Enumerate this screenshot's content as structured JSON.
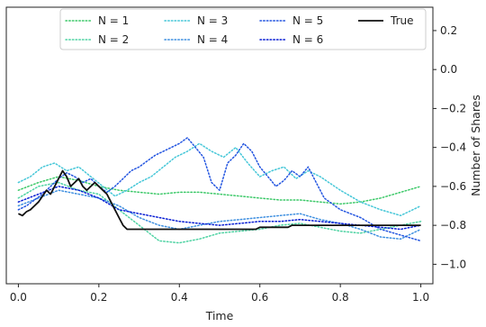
{
  "chart_data": {
    "type": "line",
    "title": "",
    "xlabel": "Time",
    "ylabel": "Number of Shares",
    "xlim": [
      -0.03,
      1.03
    ],
    "ylim": [
      -1.1,
      0.32
    ],
    "y_axis_side": "right",
    "grid": false,
    "legend": {
      "placement": "top",
      "columns": 4
    },
    "x_ticks": [
      {
        "value": 0.0,
        "label": "0.0"
      },
      {
        "value": 0.2,
        "label": "0.2"
      },
      {
        "value": 0.4,
        "label": "0.4"
      },
      {
        "value": 0.6,
        "label": "0.6"
      },
      {
        "value": 0.8,
        "label": "0.8"
      },
      {
        "value": 1.0,
        "label": "1.0"
      }
    ],
    "y_ticks": [
      {
        "value": 0.2,
        "label": "0.2"
      },
      {
        "value": 0.0,
        "label": "0.0"
      },
      {
        "value": -0.2,
        "label": "−0.2"
      },
      {
        "value": -0.4,
        "label": "−0.4"
      },
      {
        "value": -0.6,
        "label": "−0.6"
      },
      {
        "value": -0.8,
        "label": "−0.8"
      },
      {
        "value": -1.0,
        "label": "−1.0"
      }
    ],
    "series": [
      {
        "name": "N = 1",
        "style": "dotted",
        "color": "#3ec96a",
        "x": [
          0.0,
          0.05,
          0.1,
          0.15,
          0.2,
          0.25,
          0.3,
          0.35,
          0.4,
          0.45,
          0.5,
          0.55,
          0.6,
          0.65,
          0.7,
          0.75,
          0.8,
          0.85,
          0.9,
          0.95,
          1.0
        ],
        "values": [
          -0.62,
          -0.58,
          -0.55,
          -0.57,
          -0.6,
          -0.62,
          -0.63,
          -0.64,
          -0.63,
          -0.63,
          -0.64,
          -0.65,
          -0.66,
          -0.67,
          -0.67,
          -0.68,
          -0.69,
          -0.68,
          -0.66,
          -0.63,
          -0.6
        ]
      },
      {
        "name": "N = 2",
        "style": "dotted",
        "color": "#4fd3a3",
        "x": [
          0.0,
          0.05,
          0.1,
          0.15,
          0.2,
          0.25,
          0.3,
          0.35,
          0.4,
          0.45,
          0.5,
          0.55,
          0.6,
          0.65,
          0.7,
          0.75,
          0.8,
          0.85,
          0.9,
          0.95,
          1.0
        ],
        "values": [
          -0.66,
          -0.6,
          -0.58,
          -0.62,
          -0.64,
          -0.72,
          -0.8,
          -0.88,
          -0.89,
          -0.87,
          -0.84,
          -0.83,
          -0.82,
          -0.8,
          -0.79,
          -0.81,
          -0.83,
          -0.84,
          -0.82,
          -0.8,
          -0.78
        ]
      },
      {
        "name": "N = 3",
        "style": "dotted",
        "color": "#46c7d8",
        "x": [
          0.0,
          0.03,
          0.06,
          0.09,
          0.12,
          0.15,
          0.18,
          0.21,
          0.24,
          0.27,
          0.3,
          0.33,
          0.36,
          0.39,
          0.42,
          0.45,
          0.48,
          0.51,
          0.54,
          0.57,
          0.6,
          0.63,
          0.66,
          0.69,
          0.72,
          0.75,
          0.8,
          0.85,
          0.9,
          0.95,
          1.0
        ],
        "values": [
          -0.58,
          -0.55,
          -0.5,
          -0.48,
          -0.52,
          -0.5,
          -0.55,
          -0.6,
          -0.65,
          -0.62,
          -0.58,
          -0.55,
          -0.5,
          -0.45,
          -0.42,
          -0.38,
          -0.42,
          -0.45,
          -0.4,
          -0.48,
          -0.55,
          -0.52,
          -0.5,
          -0.56,
          -0.52,
          -0.55,
          -0.62,
          -0.68,
          -0.72,
          -0.75,
          -0.7
        ]
      },
      {
        "name": "N = 4",
        "style": "dotted",
        "color": "#3e8fe0",
        "x": [
          0.0,
          0.05,
          0.1,
          0.15,
          0.2,
          0.25,
          0.3,
          0.35,
          0.4,
          0.45,
          0.5,
          0.55,
          0.6,
          0.65,
          0.7,
          0.75,
          0.8,
          0.85,
          0.9,
          0.95,
          1.0
        ],
        "values": [
          -0.7,
          -0.66,
          -0.62,
          -0.64,
          -0.66,
          -0.7,
          -0.76,
          -0.8,
          -0.82,
          -0.8,
          -0.78,
          -0.77,
          -0.76,
          -0.75,
          -0.74,
          -0.77,
          -0.79,
          -0.82,
          -0.86,
          -0.87,
          -0.82
        ]
      },
      {
        "name": "N = 5",
        "style": "dotted",
        "color": "#2355e0",
        "x": [
          0.0,
          0.02,
          0.04,
          0.06,
          0.08,
          0.1,
          0.12,
          0.14,
          0.16,
          0.18,
          0.2,
          0.22,
          0.24,
          0.26,
          0.28,
          0.3,
          0.32,
          0.34,
          0.36,
          0.38,
          0.4,
          0.42,
          0.44,
          0.46,
          0.48,
          0.5,
          0.52,
          0.54,
          0.56,
          0.58,
          0.6,
          0.62,
          0.64,
          0.66,
          0.68,
          0.7,
          0.72,
          0.74,
          0.76,
          0.8,
          0.85,
          0.9,
          0.95,
          1.0
        ],
        "values": [
          -0.72,
          -0.7,
          -0.67,
          -0.64,
          -0.6,
          -0.56,
          -0.53,
          -0.55,
          -0.58,
          -0.56,
          -0.6,
          -0.63,
          -0.6,
          -0.56,
          -0.52,
          -0.5,
          -0.47,
          -0.44,
          -0.42,
          -0.4,
          -0.38,
          -0.35,
          -0.4,
          -0.45,
          -0.58,
          -0.62,
          -0.48,
          -0.44,
          -0.38,
          -0.42,
          -0.5,
          -0.55,
          -0.6,
          -0.57,
          -0.52,
          -0.55,
          -0.5,
          -0.58,
          -0.66,
          -0.72,
          -0.76,
          -0.82,
          -0.85,
          -0.88
        ]
      },
      {
        "name": "N = 6",
        "style": "dotted",
        "color": "#0a1fd4",
        "x": [
          0.0,
          0.05,
          0.1,
          0.15,
          0.2,
          0.25,
          0.3,
          0.35,
          0.4,
          0.45,
          0.5,
          0.55,
          0.6,
          0.65,
          0.7,
          0.75,
          0.8,
          0.85,
          0.9,
          0.95,
          1.0
        ],
        "values": [
          -0.68,
          -0.64,
          -0.6,
          -0.62,
          -0.66,
          -0.72,
          -0.74,
          -0.76,
          -0.78,
          -0.79,
          -0.8,
          -0.79,
          -0.78,
          -0.78,
          -0.77,
          -0.78,
          -0.79,
          -0.8,
          -0.81,
          -0.82,
          -0.8
        ]
      },
      {
        "name": "True",
        "style": "solid",
        "color": "#111111",
        "x": [
          0.0,
          0.01,
          0.02,
          0.03,
          0.04,
          0.05,
          0.06,
          0.07,
          0.08,
          0.09,
          0.1,
          0.11,
          0.12,
          0.13,
          0.14,
          0.15,
          0.16,
          0.17,
          0.18,
          0.19,
          0.2,
          0.21,
          0.22,
          0.23,
          0.24,
          0.25,
          0.26,
          0.27,
          0.28,
          0.29,
          0.3,
          0.31,
          0.32,
          0.33,
          0.34,
          0.35,
          0.36,
          0.37,
          0.38,
          0.39,
          0.4,
          0.41,
          0.42,
          0.43,
          0.44,
          0.45,
          0.46,
          0.47,
          0.48,
          0.49,
          0.5,
          0.51,
          0.52,
          0.53,
          0.54,
          0.55,
          0.56,
          0.57,
          0.58,
          0.59,
          0.6,
          0.61,
          0.62,
          0.63,
          0.64,
          0.65,
          0.66,
          0.67,
          0.68,
          0.69,
          0.7,
          0.71,
          0.72,
          0.73,
          0.74,
          0.75,
          0.76,
          0.78,
          0.8,
          0.85,
          0.9,
          0.95,
          1.0
        ],
        "values": [
          -0.74,
          -0.75,
          -0.73,
          -0.72,
          -0.7,
          -0.68,
          -0.65,
          -0.62,
          -0.64,
          -0.6,
          -0.56,
          -0.52,
          -0.55,
          -0.6,
          -0.58,
          -0.56,
          -0.6,
          -0.62,
          -0.6,
          -0.58,
          -0.6,
          -0.62,
          -0.64,
          -0.68,
          -0.72,
          -0.76,
          -0.8,
          -0.82,
          -0.82,
          -0.82,
          -0.82,
          -0.82,
          -0.82,
          -0.82,
          -0.82,
          -0.82,
          -0.82,
          -0.82,
          -0.82,
          -0.82,
          -0.82,
          -0.82,
          -0.82,
          -0.82,
          -0.82,
          -0.82,
          -0.82,
          -0.82,
          -0.82,
          -0.82,
          -0.82,
          -0.82,
          -0.82,
          -0.82,
          -0.82,
          -0.82,
          -0.82,
          -0.82,
          -0.82,
          -0.82,
          -0.81,
          -0.81,
          -0.81,
          -0.81,
          -0.81,
          -0.81,
          -0.81,
          -0.81,
          -0.8,
          -0.8,
          -0.8,
          -0.8,
          -0.8,
          -0.8,
          -0.8,
          -0.8,
          -0.8,
          -0.8,
          -0.8,
          -0.8,
          -0.8,
          -0.8,
          -0.8
        ]
      }
    ]
  }
}
